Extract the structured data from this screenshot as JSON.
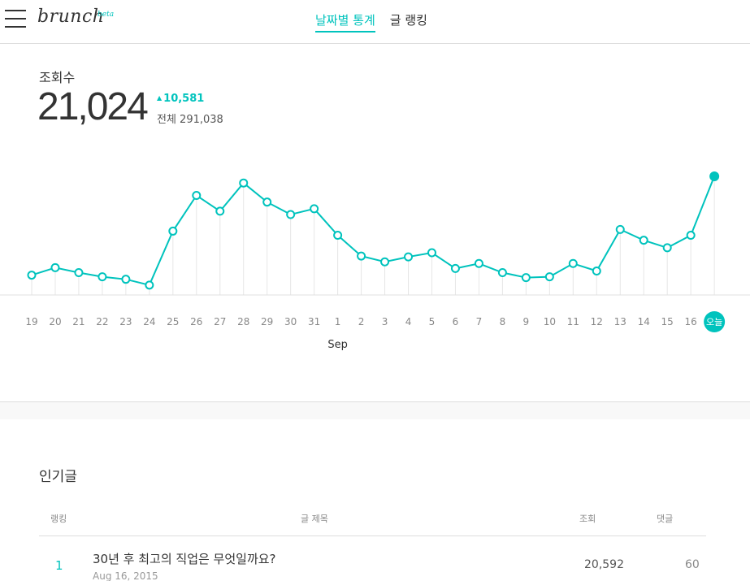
{
  "header": {
    "logo": "brunch",
    "logo_badge": "beta",
    "tabs": [
      {
        "label": "날짜별 통계",
        "active": true
      },
      {
        "label": "글 랭킹",
        "active": false
      }
    ]
  },
  "stats": {
    "label": "조회수",
    "value": "21,024",
    "delta": "10,581",
    "total": "전체 291,038"
  },
  "chart_data": {
    "type": "line",
    "x": [
      "19",
      "20",
      "21",
      "22",
      "23",
      "24",
      "25",
      "26",
      "27",
      "28",
      "29",
      "30",
      "31",
      "1",
      "2",
      "3",
      "4",
      "5",
      "6",
      "7",
      "8",
      "9",
      "10",
      "11",
      "12",
      "13",
      "14",
      "15",
      "16",
      "오늘"
    ],
    "month_label": "Sep",
    "series": [
      {
        "values": [
          20,
          29,
          23,
          18,
          15,
          8,
          73,
          116,
          97,
          131,
          108,
          93,
          100,
          68,
          43,
          36,
          42,
          47,
          28,
          34,
          23,
          17,
          18,
          34,
          25,
          75,
          62,
          53,
          68,
          139
        ]
      }
    ],
    "highlight_last": true,
    "colors": {
      "line": "#00c3bd",
      "grid": "#e6e6e6",
      "axis": "#e0e0e0"
    }
  },
  "popular": {
    "title": "인기글",
    "columns": {
      "rank": "랭킹",
      "title": "글 제목",
      "views": "조회",
      "comments": "댓글"
    },
    "rows": [
      {
        "rank": "1",
        "title": "30년 후 최고의 직업은 무엇일까요?",
        "date": "Aug 16, 2015",
        "views": "20,592",
        "comments": "60"
      }
    ]
  }
}
